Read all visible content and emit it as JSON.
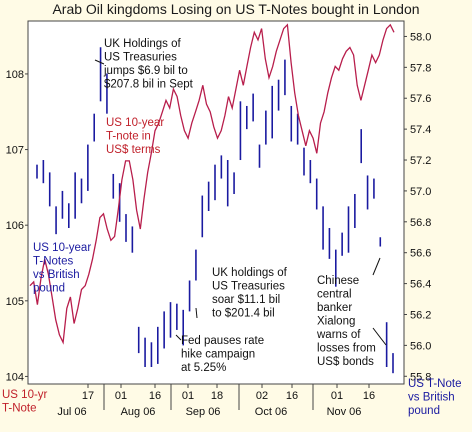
{
  "chart_data": {
    "type": "line+bar",
    "title": "Arab Oil kingdoms Losing on US T-Notes bought in London",
    "left_axis": {
      "label": [
        "US 10-yr",
        "T-Note"
      ],
      "ticks": [
        104,
        105,
        106,
        107,
        108
      ],
      "range": [
        103.9,
        108.7
      ]
    },
    "right_axis": {
      "label": [
        "US T-Note",
        "vs British",
        "pound"
      ],
      "ticks": [
        55.8,
        56.0,
        56.2,
        56.4,
        56.6,
        56.8,
        57.0,
        57.2,
        57.4,
        57.6,
        57.8,
        58.0
      ],
      "range": [
        55.75,
        58.1
      ]
    },
    "x_axis": {
      "ticks": [
        "17",
        "01",
        "16",
        "01",
        "18",
        "02",
        "16",
        "01",
        "16"
      ],
      "month_labels": [
        "Jul 06",
        "Aug 06",
        "Sep 06",
        "Oct 06",
        "Nov 06"
      ]
    },
    "series": [
      {
        "name": "US 10-year T-note in US$ terms",
        "axis": "left",
        "color": "#b81e4c",
        "values": [
          105.2,
          105.25,
          104.95,
          105.3,
          105.55,
          105.35,
          105.05,
          104.75,
          104.55,
          104.45,
          104.9,
          105.05,
          104.7,
          104.9,
          105.15,
          105.2,
          105.35,
          105.55,
          105.8,
          106.1,
          106.15,
          105.95,
          105.8,
          105.85,
          106.2,
          106.6,
          106.85,
          106.85,
          106.6,
          106.2,
          105.95,
          106.35,
          106.7,
          106.95,
          107.25,
          107.35,
          107.5,
          107.65,
          107.55,
          107.8,
          107.7,
          107.45,
          107.25,
          107.15,
          107.35,
          107.5,
          107.65,
          107.85,
          107.6,
          107.5,
          107.3,
          107.15,
          107.25,
          107.45,
          107.7,
          107.55,
          107.8,
          108.05,
          107.85,
          108.1,
          108.35,
          108.55,
          108.45,
          108.6,
          108.2,
          107.95,
          108.1,
          108.3,
          108.45,
          108.6,
          108.65,
          108.15,
          107.75,
          107.45,
          107.25,
          107.05,
          107.25,
          107.15,
          106.95,
          107.35,
          107.5,
          107.75,
          107.95,
          108.1,
          108.05,
          108.2,
          108.3,
          108.35,
          108.25,
          107.85,
          107.65,
          107.85,
          108.05,
          108.25,
          108.15,
          108.25,
          108.45,
          108.6,
          108.65,
          108.55
        ]
      },
      {
        "name": "US 10-year T-Notes vs British pound",
        "axis": "right",
        "color": "#1a1aa0",
        "bars": [
          {
            "lo": 57.08,
            "hi": 57.17
          },
          {
            "lo": 57.05,
            "hi": 57.2
          },
          {
            "lo": 56.9,
            "hi": 57.12
          },
          {
            "lo": 56.72,
            "hi": 56.9
          },
          {
            "lo": 56.82,
            "hi": 57.0
          },
          {
            "lo": 56.76,
            "hi": 56.92
          },
          {
            "lo": 56.82,
            "hi": 57.12
          },
          {
            "lo": 56.92,
            "hi": 57.08
          },
          {
            "lo": 57.0,
            "hi": 57.3
          },
          {
            "lo": 57.32,
            "hi": 57.5
          },
          {
            "lo": 57.58,
            "hi": 57.93
          },
          {
            "lo": 57.5,
            "hi": 57.76
          },
          {
            "lo": 56.95,
            "hi": 57.11
          },
          {
            "lo": 56.8,
            "hi": 57.05
          },
          {
            "lo": 56.67,
            "hi": 56.85
          },
          {
            "lo": 56.6,
            "hi": 56.77
          },
          {
            "lo": 55.95,
            "hi": 56.12
          },
          {
            "lo": 55.86,
            "hi": 56.05
          },
          {
            "lo": 55.86,
            "hi": 56.02
          },
          {
            "lo": 55.88,
            "hi": 56.12
          },
          {
            "lo": 55.98,
            "hi": 56.22
          },
          {
            "lo": 56.05,
            "hi": 56.28
          },
          {
            "lo": 56.1,
            "hi": 56.27
          },
          {
            "lo": 56.0,
            "hi": 56.23
          },
          {
            "lo": 56.22,
            "hi": 56.42
          },
          {
            "lo": 56.42,
            "hi": 56.62
          },
          {
            "lo": 56.7,
            "hi": 56.97
          },
          {
            "lo": 56.87,
            "hi": 57.06
          },
          {
            "lo": 56.94,
            "hi": 57.17
          },
          {
            "lo": 57.08,
            "hi": 57.23
          },
          {
            "lo": 56.9,
            "hi": 57.2
          },
          {
            "lo": 56.98,
            "hi": 57.12
          },
          {
            "lo": 57.2,
            "hi": 57.58
          },
          {
            "lo": 57.4,
            "hi": 57.55
          },
          {
            "lo": 57.45,
            "hi": 57.63
          },
          {
            "lo": 57.15,
            "hi": 57.3
          },
          {
            "lo": 57.3,
            "hi": 57.52
          },
          {
            "lo": 57.34,
            "hi": 57.68
          },
          {
            "lo": 57.52,
            "hi": 57.72
          },
          {
            "lo": 57.62,
            "hi": 57.85
          },
          {
            "lo": 57.32,
            "hi": 57.55
          },
          {
            "lo": 57.3,
            "hi": 57.5
          },
          {
            "lo": 57.1,
            "hi": 57.28
          },
          {
            "lo": 57.05,
            "hi": 57.2
          },
          {
            "lo": 56.88,
            "hi": 57.08
          },
          {
            "lo": 56.62,
            "hi": 56.9
          },
          {
            "lo": 56.56,
            "hi": 56.76
          },
          {
            "lo": 56.38,
            "hi": 56.62
          },
          {
            "lo": 56.58,
            "hi": 56.73
          },
          {
            "lo": 56.6,
            "hi": 56.9
          },
          {
            "lo": 56.76,
            "hi": 56.98
          },
          {
            "lo": 57.18,
            "hi": 57.4
          },
          {
            "lo": 56.88,
            "hi": 57.1
          },
          {
            "lo": 56.95,
            "hi": 57.08
          },
          {
            "lo": 56.64,
            "hi": 56.7
          },
          {
            "lo": 55.86,
            "hi": 56.15
          },
          {
            "lo": 55.82,
            "hi": 55.95
          }
        ]
      }
    ],
    "annotations": [
      {
        "lines": [
          "UK Holdings of",
          "US Treasuries",
          "jumps $6.9 bil to",
          "$207.8 bil in Sept"
        ]
      },
      {
        "lines": [
          "US 10-year",
          "T-note in",
          "US$ terms"
        ]
      },
      {
        "lines": [
          "US 10-year",
          "T-Notes",
          "vs British",
          "pound"
        ]
      },
      {
        "lines": [
          "UK holdings of",
          "US Treasuries",
          "soar $11.1 bil",
          "to $201.4 bil"
        ]
      },
      {
        "lines": [
          "Fed pauses rate",
          "hike campaign",
          "at 5.25%"
        ]
      },
      {
        "lines": [
          "Chinese",
          "central",
          "banker",
          "Xialong",
          "warns of",
          "losses from",
          "US$ bonds"
        ]
      }
    ]
  }
}
